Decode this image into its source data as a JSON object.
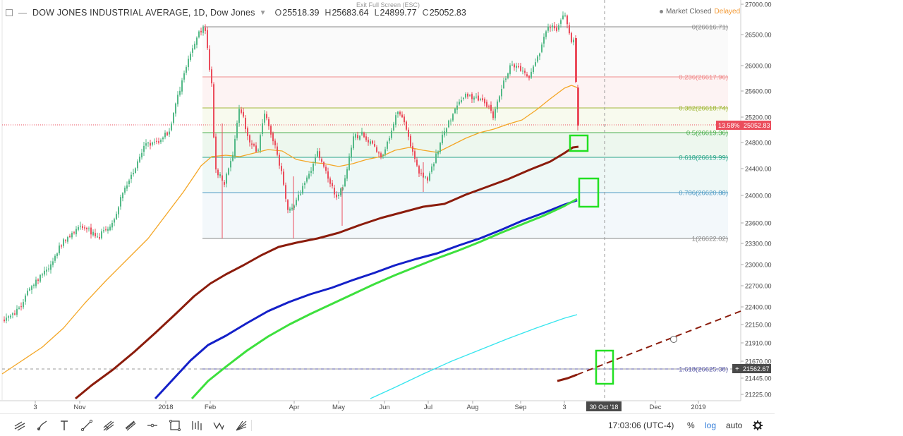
{
  "header": {
    "title": "DOW JONES INDUSTRIAL AVERAGE, 1D, Dow Jones",
    "ohlc": [
      {
        "k": "O",
        "v": "25518.39"
      },
      {
        "k": "H",
        "v": "25683.64"
      },
      {
        "k": "L",
        "v": "24899.77"
      },
      {
        "k": "C",
        "v": "25052.83"
      }
    ],
    "market_status": "Market Closed",
    "delayed": "Delayed",
    "exit_fullscreen": "Exit Full Screen (ESC)"
  },
  "chart_data": {
    "type": "candlestick",
    "y_ticks": [
      "27000.00",
      "26500.00",
      "26000.00",
      "25600.00",
      "25200.00",
      "24800.00",
      "24400.00",
      "24000.00",
      "23600.00",
      "23300.00",
      "23000.00",
      "22700.00",
      "22400.00",
      "22150.00",
      "21910.00",
      "21670.00",
      "21445.00",
      "21225.00"
    ],
    "x_ticks": [
      "3",
      "Nov",
      "2018",
      "Feb",
      "Apr",
      "May",
      "Jun",
      "Jul",
      "Aug",
      "Sep",
      "3",
      "Dec",
      "2019"
    ],
    "cursor_date": "30 Oct '18",
    "price_label": {
      "pct": "13.58%",
      "price": "25052.83"
    },
    "crosshair_price": "21562.67",
    "fib_levels": [
      {
        "label": "0(26616.71)",
        "color": "#8a8a8a"
      },
      {
        "label": "0.236(26617.96)",
        "color": "#f08c8c"
      },
      {
        "label": "0.382(26618.74)",
        "color": "#a3b83c"
      },
      {
        "label": "0.5(26619.36)",
        "color": "#4caf50"
      },
      {
        "label": "0.618(26619.99)",
        "color": "#2aa589"
      },
      {
        "label": "0.786(26620.88)",
        "color": "#4f9ac4"
      },
      {
        "label": "1(26622.02)",
        "color": "#8a8a8a"
      },
      {
        "label": "1.618(26625.38)",
        "color": "#5a5aa8"
      }
    ]
  },
  "toolbar": {
    "tools": [
      "cursor-lines-icon",
      "brush-icon",
      "text-icon",
      "trend-line-icon",
      "pitchfork-icon",
      "channel-icon",
      "horizontal-ray-icon",
      "measure-icon",
      "bars-pattern-icon",
      "wave-icon",
      "fib-fan-icon"
    ],
    "clock": "17:03:06 (UTC-4)",
    "percent": "%",
    "log": "log",
    "auto": "auto",
    "settings": "gear-icon"
  },
  "colors": {
    "up": "#53b987",
    "down": "#eb4d5c",
    "ma_orange": "#f4a625",
    "ma_brown": "#8b1c0c",
    "ma_blue": "#1420c8",
    "ma_green": "#3de03d",
    "ma_cyan": "#35e5ee",
    "highlight": "#22e022"
  }
}
